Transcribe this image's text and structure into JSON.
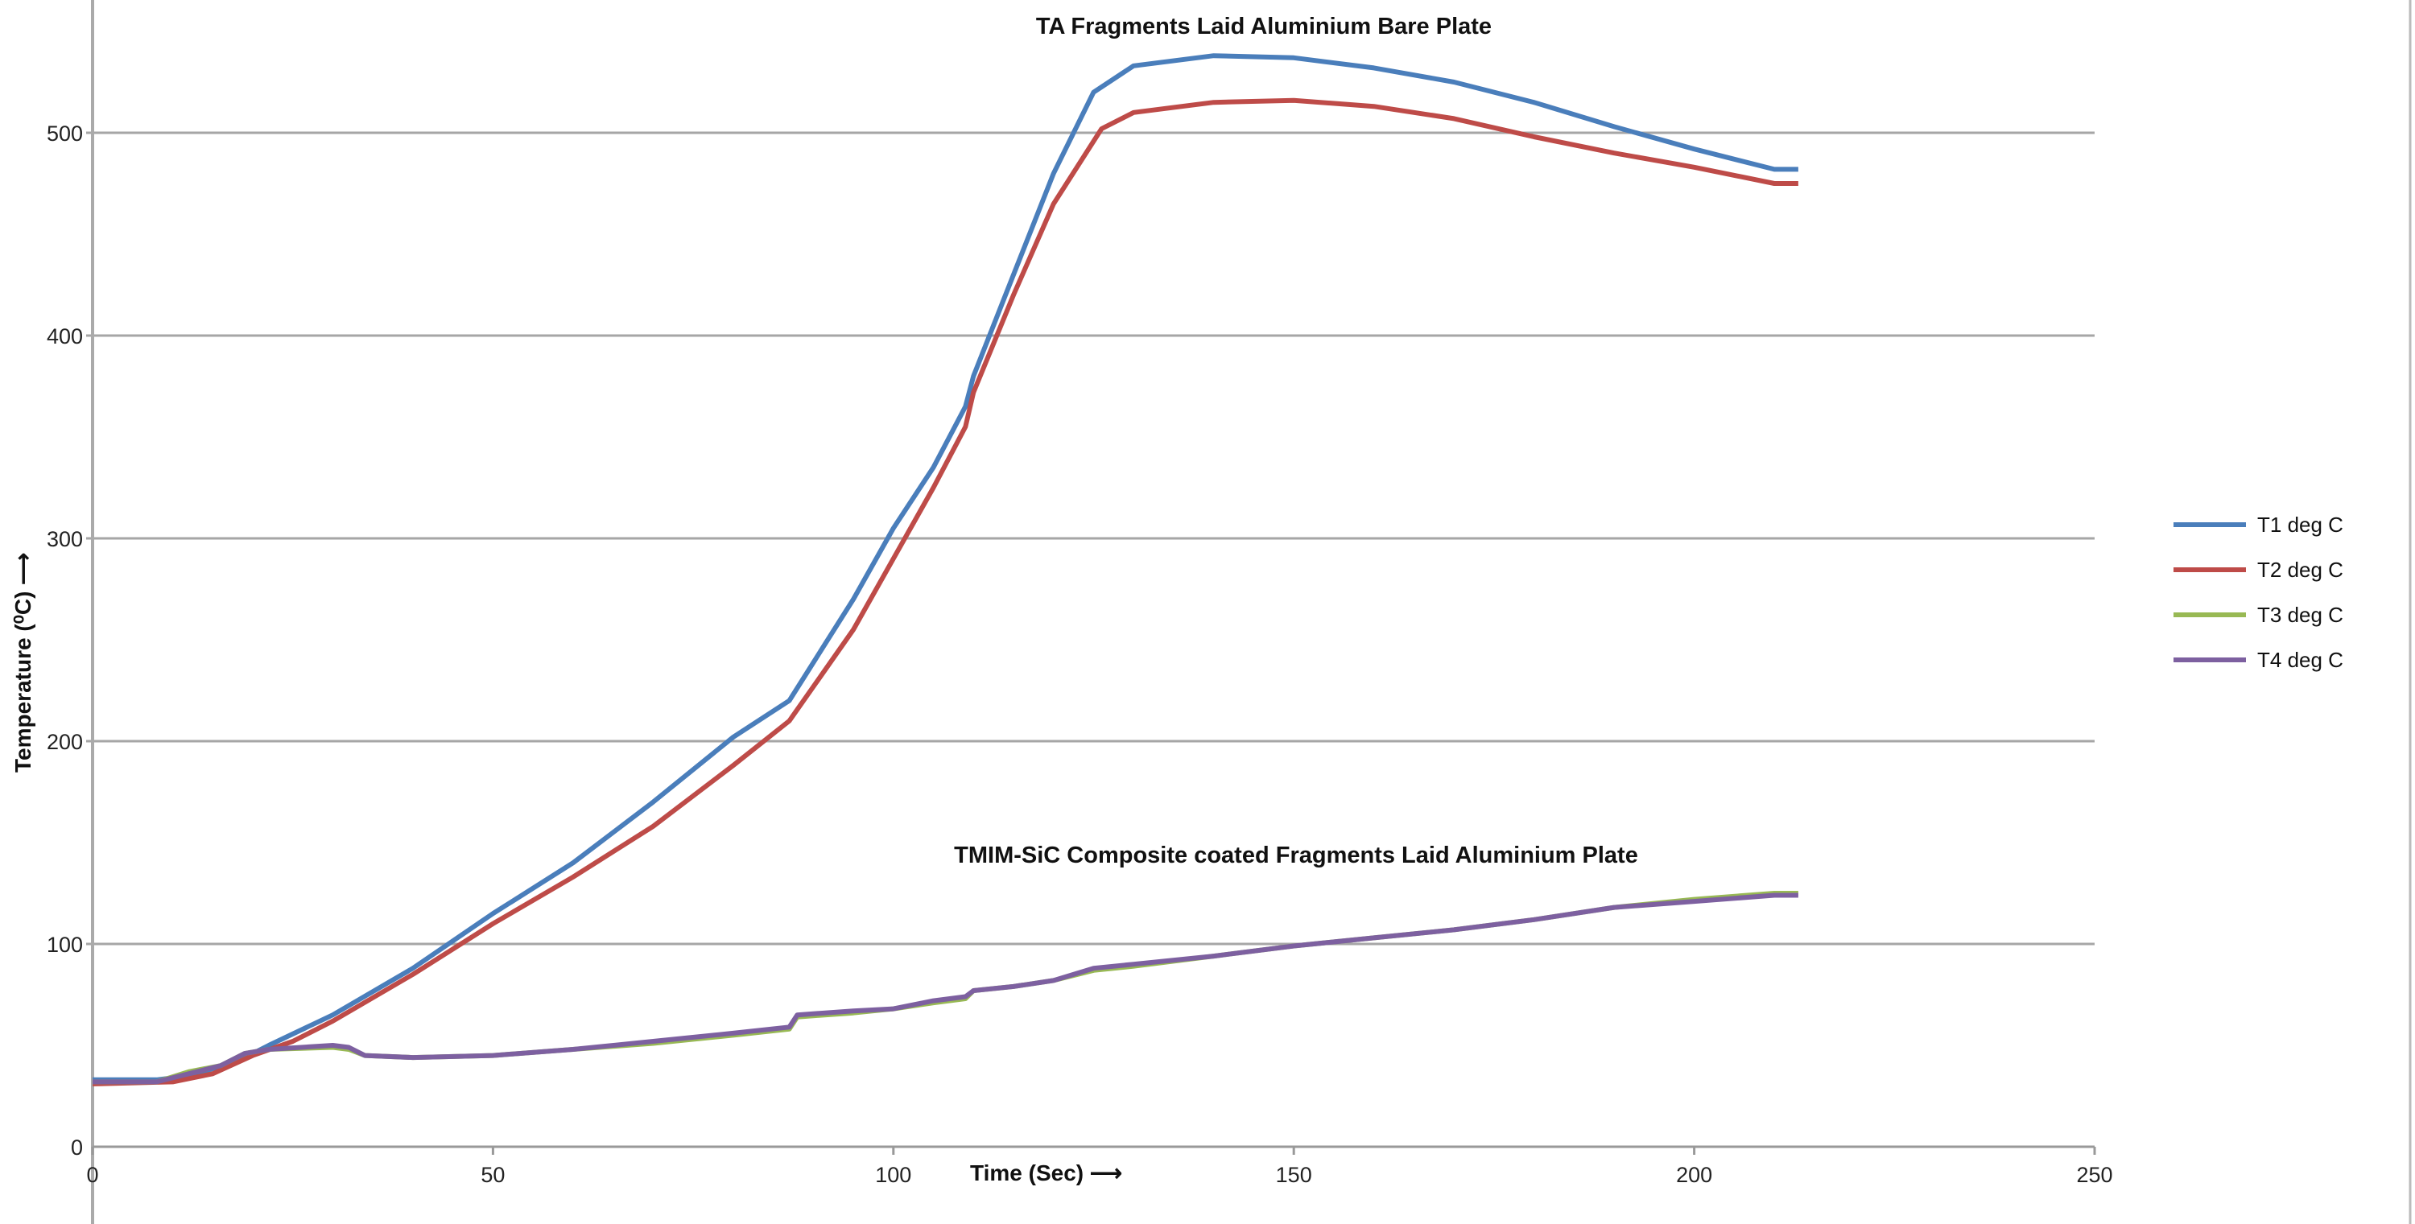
{
  "chart_data": {
    "type": "line",
    "title": "TA Fragments Laid Aluminium Bare Plate",
    "annotation": "TMIM-SiC Composite coated Fragments Laid Aluminium Plate",
    "xlabel": "Time (Sec) ⟶",
    "ylabel": "Temperature (⁰C) ⟶",
    "xlim": [
      0,
      250
    ],
    "ylim": [
      0,
      500
    ],
    "xticks": [
      0,
      50,
      100,
      150,
      200,
      250
    ],
    "yticks": [
      0,
      100,
      200,
      300,
      400,
      500
    ],
    "grid": "horizontal",
    "legend_position": "right",
    "series": [
      {
        "name": "T1 deg C",
        "color": "#4a7ebb",
        "points": [
          [
            0,
            33
          ],
          [
            8,
            33
          ],
          [
            12,
            35
          ],
          [
            18,
            42
          ],
          [
            22,
            50
          ],
          [
            30,
            65
          ],
          [
            40,
            88
          ],
          [
            50,
            115
          ],
          [
            60,
            140
          ],
          [
            70,
            170
          ],
          [
            80,
            202
          ],
          [
            87,
            220
          ],
          [
            95,
            270
          ],
          [
            100,
            305
          ],
          [
            105,
            335
          ],
          [
            109,
            365
          ],
          [
            110,
            380
          ],
          [
            115,
            430
          ],
          [
            120,
            480
          ],
          [
            125,
            520
          ],
          [
            130,
            533
          ],
          [
            140,
            538
          ],
          [
            150,
            537
          ],
          [
            160,
            532
          ],
          [
            170,
            525
          ],
          [
            180,
            515
          ],
          [
            190,
            503
          ],
          [
            200,
            492
          ],
          [
            210,
            482
          ],
          [
            213,
            482
          ]
        ]
      },
      {
        "name": "T2 deg C",
        "color": "#be4b48",
        "points": [
          [
            0,
            31
          ],
          [
            10,
            32
          ],
          [
            15,
            36
          ],
          [
            20,
            45
          ],
          [
            25,
            52
          ],
          [
            30,
            62
          ],
          [
            40,
            85
          ],
          [
            50,
            110
          ],
          [
            60,
            133
          ],
          [
            70,
            158
          ],
          [
            80,
            188
          ],
          [
            87,
            210
          ],
          [
            95,
            255
          ],
          [
            100,
            290
          ],
          [
            105,
            325
          ],
          [
            109,
            355
          ],
          [
            110,
            372
          ],
          [
            115,
            420
          ],
          [
            120,
            465
          ],
          [
            126,
            502
          ],
          [
            130,
            510
          ],
          [
            140,
            515
          ],
          [
            150,
            516
          ],
          [
            160,
            513
          ],
          [
            170,
            507
          ],
          [
            180,
            498
          ],
          [
            190,
            490
          ],
          [
            200,
            483
          ],
          [
            210,
            475
          ],
          [
            213,
            475
          ]
        ]
      },
      {
        "name": "T3 deg C",
        "color": "#98b954",
        "points": [
          [
            0,
            32
          ],
          [
            8,
            32
          ],
          [
            12,
            37
          ],
          [
            16,
            40
          ],
          [
            19,
            46
          ],
          [
            22,
            48
          ],
          [
            30,
            49
          ],
          [
            32,
            48
          ],
          [
            34,
            45
          ],
          [
            40,
            44
          ],
          [
            50,
            45
          ],
          [
            60,
            48
          ],
          [
            70,
            51
          ],
          [
            80,
            55
          ],
          [
            87,
            58
          ],
          [
            88,
            64
          ],
          [
            95,
            66
          ],
          [
            100,
            68
          ],
          [
            105,
            71
          ],
          [
            109,
            73
          ],
          [
            110,
            77
          ],
          [
            115,
            79
          ],
          [
            120,
            82
          ],
          [
            125,
            87
          ],
          [
            130,
            89
          ],
          [
            140,
            94
          ],
          [
            150,
            99
          ],
          [
            160,
            103
          ],
          [
            170,
            107
          ],
          [
            180,
            112
          ],
          [
            190,
            118
          ],
          [
            200,
            122
          ],
          [
            210,
            125
          ],
          [
            213,
            125
          ]
        ]
      },
      {
        "name": "T4 deg C",
        "color": "#7d60a0",
        "points": [
          [
            0,
            32
          ],
          [
            8,
            32
          ],
          [
            12,
            36
          ],
          [
            16,
            40
          ],
          [
            19,
            46
          ],
          [
            22,
            48
          ],
          [
            30,
            50
          ],
          [
            32,
            49
          ],
          [
            34,
            45
          ],
          [
            40,
            44
          ],
          [
            50,
            45
          ],
          [
            60,
            48
          ],
          [
            70,
            52
          ],
          [
            80,
            56
          ],
          [
            87,
            59
          ],
          [
            88,
            65
          ],
          [
            95,
            67
          ],
          [
            100,
            68
          ],
          [
            105,
            72
          ],
          [
            109,
            74
          ],
          [
            110,
            77
          ],
          [
            115,
            79
          ],
          [
            120,
            82
          ],
          [
            125,
            88
          ],
          [
            130,
            90
          ],
          [
            140,
            94
          ],
          [
            150,
            99
          ],
          [
            160,
            103
          ],
          [
            170,
            107
          ],
          [
            180,
            112
          ],
          [
            190,
            118
          ],
          [
            200,
            121
          ],
          [
            210,
            124
          ],
          [
            213,
            124
          ]
        ]
      }
    ]
  }
}
